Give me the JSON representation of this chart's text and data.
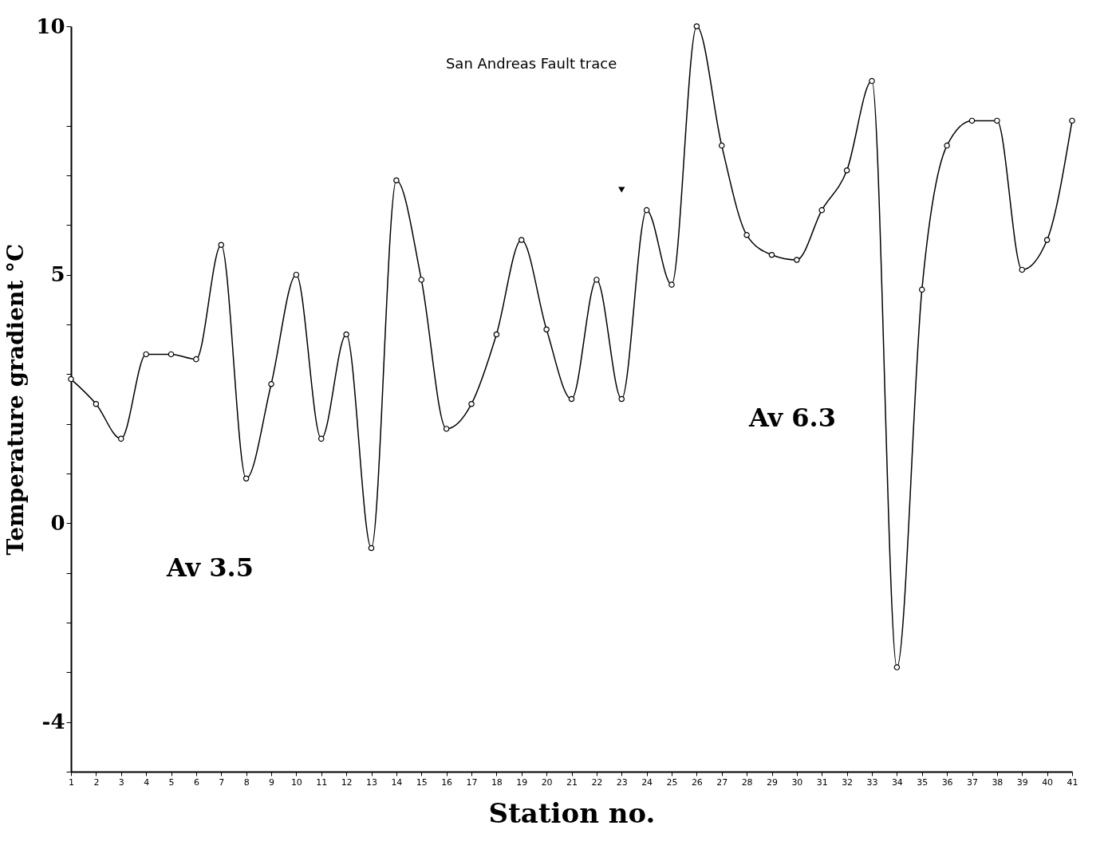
{
  "chart_data": {
    "type": "line",
    "xlabel": "Station no.",
    "ylabel": "Temperature gradient  °C",
    "x": [
      1,
      2,
      3,
      4,
      5,
      6,
      7,
      8,
      9,
      10,
      11,
      12,
      13,
      14,
      15,
      16,
      17,
      18,
      19,
      20,
      21,
      22,
      23,
      24,
      25,
      26,
      27,
      28,
      29,
      30,
      31,
      32,
      33,
      34,
      35,
      36,
      37,
      38,
      39,
      40,
      41
    ],
    "values": [
      2.9,
      2.4,
      1.7,
      3.4,
      3.4,
      3.3,
      5.6,
      0.9,
      2.8,
      5.0,
      1.7,
      3.8,
      -0.5,
      6.9,
      4.9,
      1.9,
      2.4,
      3.8,
      5.7,
      3.9,
      2.5,
      4.9,
      2.5,
      6.3,
      4.8,
      10.0,
      7.6,
      5.8,
      5.4,
      5.3,
      6.3,
      7.1,
      8.9,
      -2.9,
      4.7,
      7.6,
      8.1,
      8.1,
      5.1,
      5.7,
      8.1
    ],
    "color": "#000000",
    "marker": "circle",
    "line_style": "solid",
    "grid": false,
    "xlim": [
      1,
      41
    ],
    "xticks": [
      1,
      2,
      3,
      4,
      5,
      6,
      7,
      8,
      9,
      10,
      11,
      12,
      13,
      14,
      15,
      16,
      17,
      18,
      19,
      20,
      21,
      22,
      23,
      24,
      25,
      26,
      27,
      28,
      29,
      30,
      31,
      32,
      33,
      34,
      35,
      36,
      37,
      38,
      39,
      40,
      41
    ],
    "ylim": [
      -5,
      10
    ],
    "yticks": [
      {
        "value": -5,
        "label": null
      },
      -4,
      {
        "value": -3,
        "label": null
      },
      {
        "value": -2,
        "label": null
      },
      {
        "value": -1,
        "label": null
      },
      0,
      {
        "value": 1,
        "label": null
      },
      {
        "value": 2,
        "label": null
      },
      {
        "value": 3,
        "label": null
      },
      {
        "value": 4,
        "label": null
      },
      5,
      {
        "value": 6,
        "label": null
      },
      {
        "value": 7,
        "label": null
      },
      {
        "value": 8,
        "label": null
      },
      10
    ],
    "annotations": [
      "San Andreas Fault trace",
      "Av 3.5",
      "Av 6.3"
    ]
  }
}
